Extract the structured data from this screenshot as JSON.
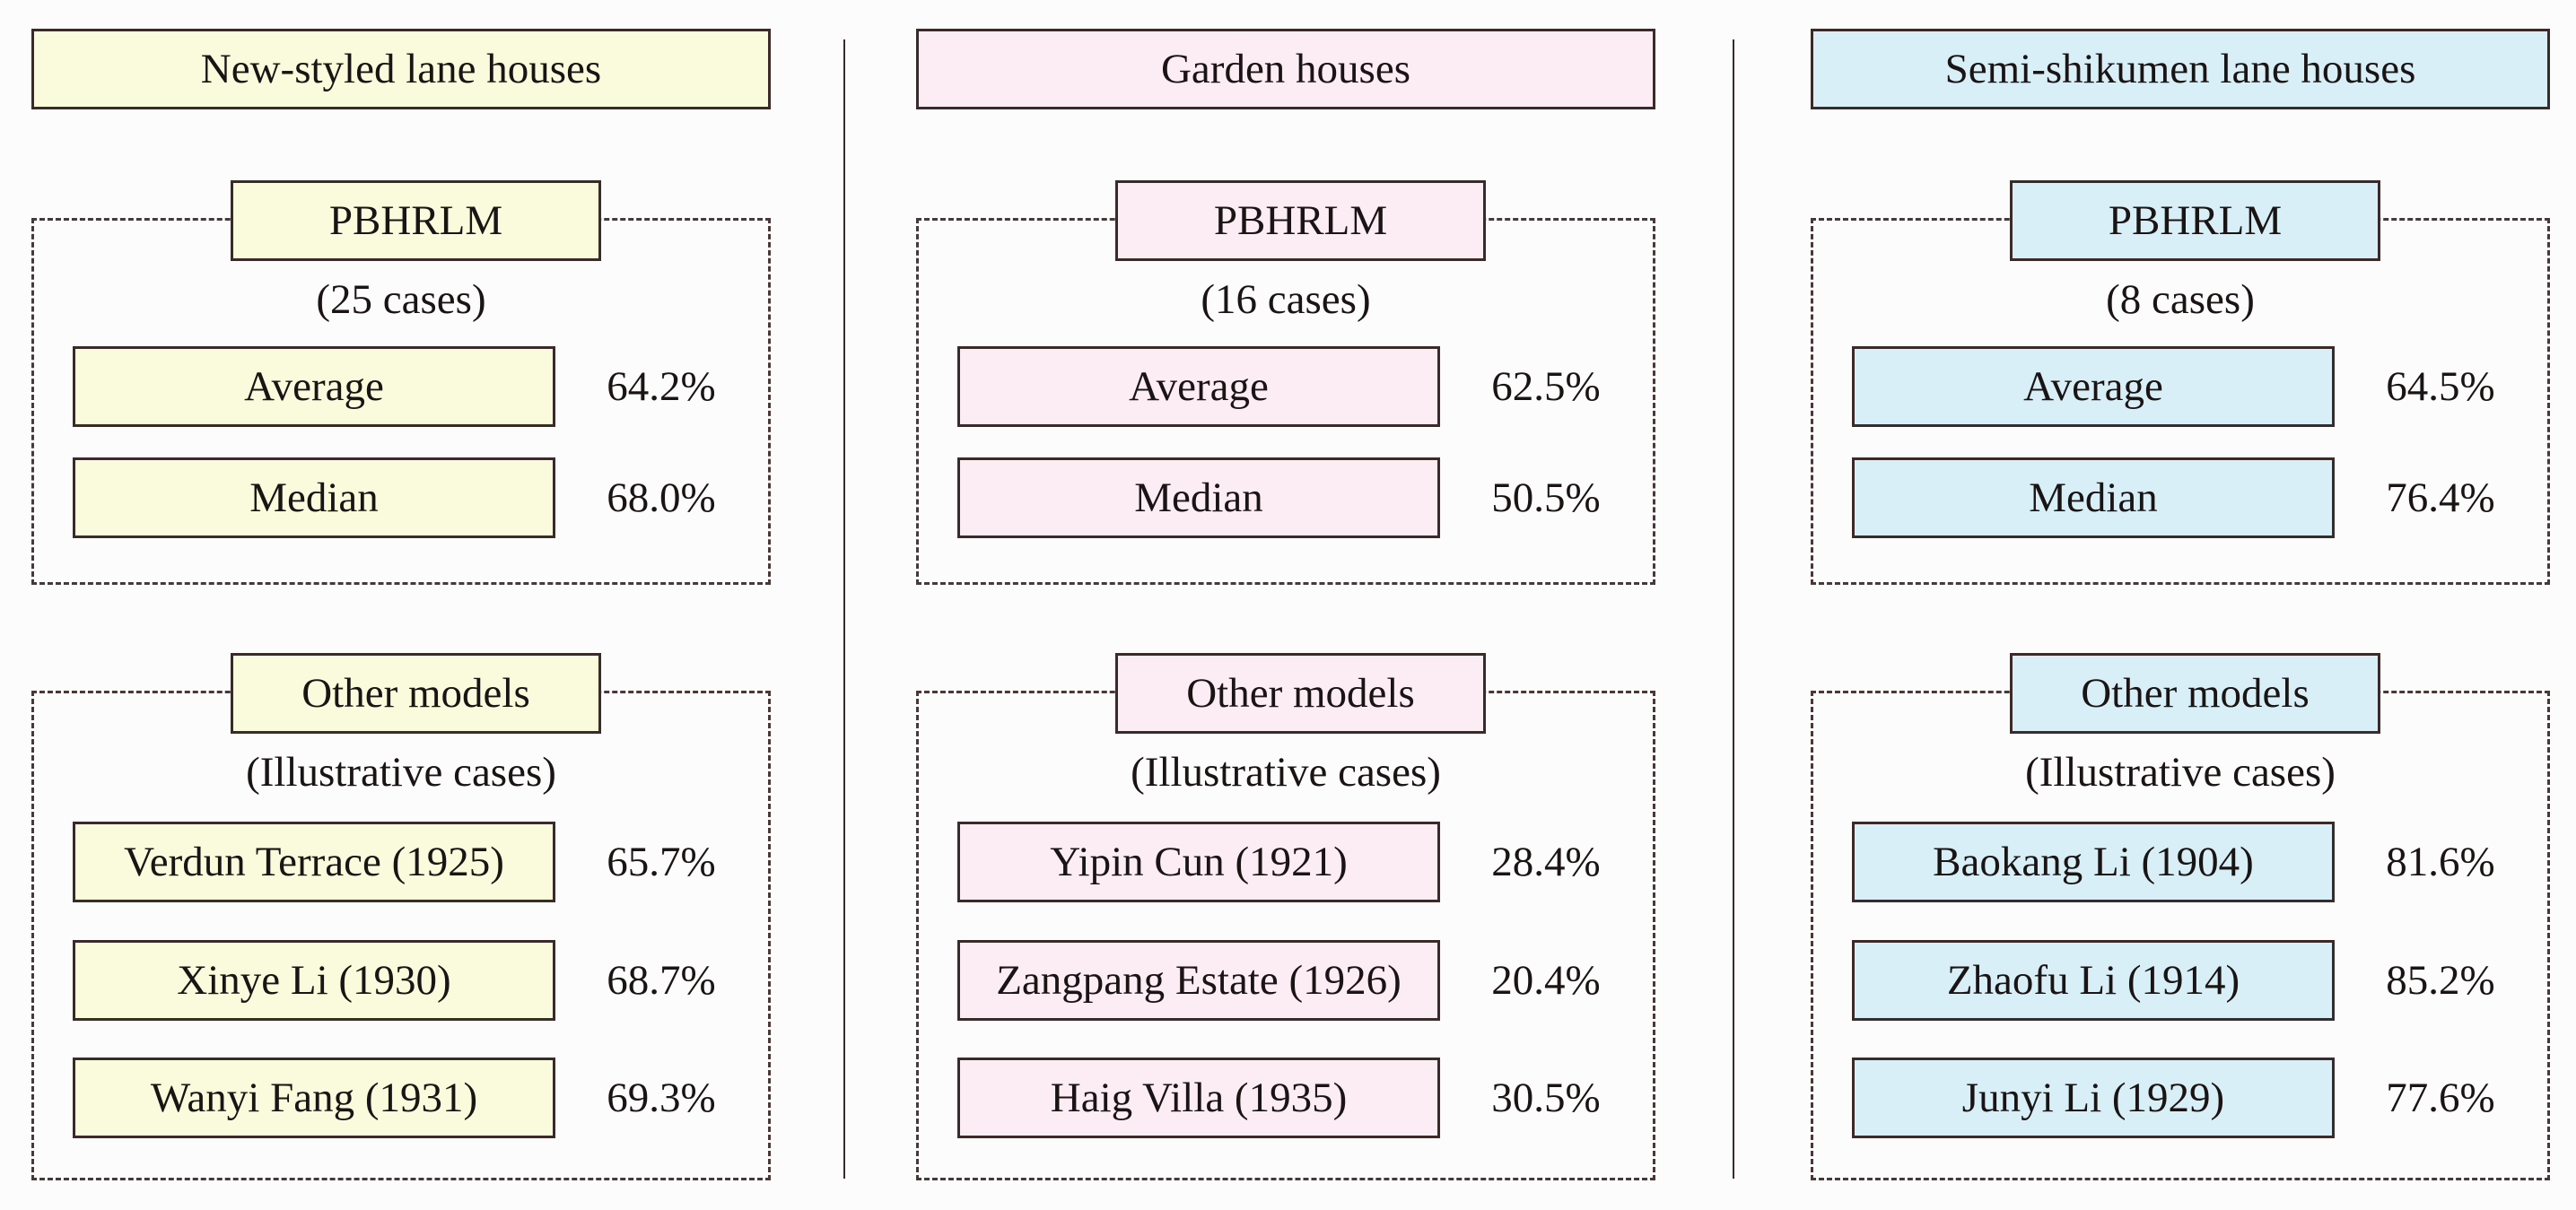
{
  "columns": [
    {
      "title": "New-styled lane houses",
      "pbhrlm": {
        "label": "PBHRLM",
        "subtitle": "(25 cases)",
        "rows": [
          {
            "label": "Average",
            "value": "64.2%"
          },
          {
            "label": "Median",
            "value": "68.0%"
          }
        ]
      },
      "other": {
        "label": "Other models",
        "subtitle": "(Illustrative cases)",
        "rows": [
          {
            "label": "Verdun Terrace (1925)",
            "value": "65.7%"
          },
          {
            "label": "Xinye Li (1930)",
            "value": "68.7%"
          },
          {
            "label": "Wanyi Fang (1931)",
            "value": "69.3%"
          }
        ]
      }
    },
    {
      "title": "Garden houses",
      "pbhrlm": {
        "label": "PBHRLM",
        "subtitle": "(16 cases)",
        "rows": [
          {
            "label": "Average",
            "value": "62.5%"
          },
          {
            "label": "Median",
            "value": "50.5%"
          }
        ]
      },
      "other": {
        "label": "Other models",
        "subtitle": "(Illustrative cases)",
        "rows": [
          {
            "label": "Yipin Cun (1921)",
            "value": "28.4%"
          },
          {
            "label": "Zangpang Estate (1926)",
            "value": "20.4%"
          },
          {
            "label": "Haig Villa (1935)",
            "value": "30.5%"
          }
        ]
      }
    },
    {
      "title": "Semi-shikumen lane houses",
      "pbhrlm": {
        "label": "PBHRLM",
        "subtitle": "(8 cases)",
        "rows": [
          {
            "label": "Average",
            "value": "64.5%"
          },
          {
            "label": "Median",
            "value": "76.4%"
          }
        ]
      },
      "other": {
        "label": "Other models",
        "subtitle": "(Illustrative cases)",
        "rows": [
          {
            "label": "Baokang Li (1904)",
            "value": "81.6%"
          },
          {
            "label": "Zhaofu Li (1914)",
            "value": "85.2%"
          },
          {
            "label": "Junyi Li (1929)",
            "value": "77.6%"
          }
        ]
      }
    }
  ],
  "colors": {
    "new_styled_fill": "#fafadc",
    "garden_fill": "#fcecf3",
    "semi_shikumen_fill": "#d9eff8",
    "border": "#3a2a2a"
  }
}
